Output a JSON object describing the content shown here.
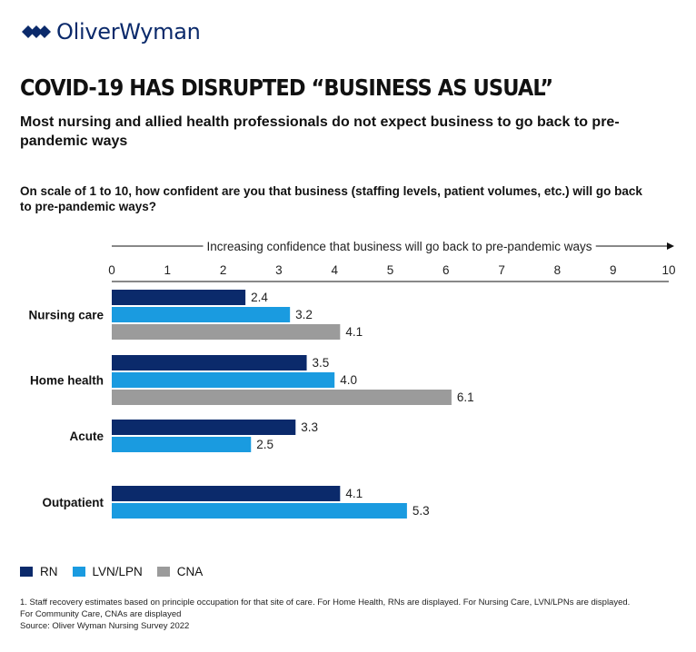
{
  "brand": {
    "logo_text": "OliverWyman",
    "logo_color": "#0b2a6b"
  },
  "headline": "COVID-19 HAS DISRUPTED “BUSINESS AS USUAL”",
  "subtitle": "Most nursing and allied health professionals do not expect business to go back to pre-pandemic ways",
  "question": "On scale of 1 to 10, how confident are you that business (staffing levels, patient volumes, etc.) will go back to pre-pandemic ways?",
  "chart_data": {
    "type": "bar",
    "orientation": "horizontal",
    "axis_label": "Increasing confidence that business will go back to pre-pandemic ways",
    "xlim": [
      0,
      10
    ],
    "ticks": [
      "0",
      "1",
      "2",
      "3",
      "4",
      "5",
      "6",
      "7",
      "8",
      "9",
      "10"
    ],
    "grid": false,
    "categories": [
      "Nursing care",
      "Home health",
      "Acute",
      "Outpatient"
    ],
    "series": [
      {
        "name": "RN",
        "color": "#0b2a6b",
        "values": [
          2.4,
          3.5,
          3.3,
          4.1
        ]
      },
      {
        "name": "LVN/LPN",
        "color": "#1a9be0",
        "values": [
          3.2,
          4.0,
          2.5,
          5.3
        ]
      },
      {
        "name": "CNA",
        "color": "#9b9b9b",
        "values": [
          4.1,
          6.1,
          null,
          null
        ]
      }
    ],
    "data_labels": [
      [
        "2.4",
        "3.2",
        "4.1"
      ],
      [
        "3.5",
        "4.0",
        "6.1"
      ],
      [
        "3.3",
        "2.5"
      ],
      [
        "4.1",
        "5.3"
      ]
    ],
    "legend_position": "bottom-left"
  },
  "legend": [
    {
      "label": "RN",
      "color": "#0b2a6b"
    },
    {
      "label": "LVN/LPN",
      "color": "#1a9be0"
    },
    {
      "label": "CNA",
      "color": "#9b9b9b"
    }
  ],
  "footnotes": [
    "1. Staff recovery estimates based on principle occupation for that site of care. For Home Health, RNs are displayed. For Nursing Care, LVN/LPNs are displayed.",
    "For Community Care, CNAs are displayed",
    "Source: Oliver Wyman Nursing Survey 2022"
  ]
}
